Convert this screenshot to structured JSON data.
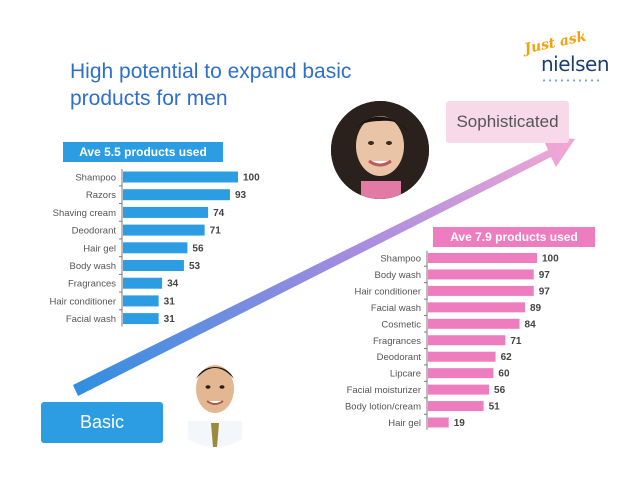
{
  "slide": {
    "title": "High potential to expand basic products for men",
    "logo_tagline": "Just ask",
    "logo_brand": "nielsen",
    "basic_label": "Basic",
    "sophisticated_label": "Sophisticated"
  },
  "colors": {
    "blue": "#2c9de2",
    "pink": "#ee7dc0",
    "title": "#2f6fcc"
  },
  "chart_data": [
    {
      "type": "bar",
      "orientation": "horizontal",
      "title": "Ave 5.5 products used",
      "categories": [
        "Shampoo",
        "Razors",
        "Shaving cream",
        "Deodorant",
        "Hair gel",
        "Body wash",
        "Fragrances",
        "Hair conditioner",
        "Facial wash"
      ],
      "values": [
        100,
        93,
        74,
        71,
        56,
        53,
        34,
        31,
        31
      ],
      "xlim": [
        0,
        100
      ],
      "grid": false,
      "color": "#2c9de2"
    },
    {
      "type": "bar",
      "orientation": "horizontal",
      "title": "Ave 7.9 products used",
      "categories": [
        "Shampoo",
        "Body wash",
        "Hair conditioner",
        "Facial wash",
        "Cosmetic",
        "Fragrances",
        "Deodorant",
        "Lipcare",
        "Facial moisturizer",
        "Body lotion/cream",
        "Hair gel"
      ],
      "values": [
        100,
        97,
        97,
        89,
        84,
        71,
        62,
        60,
        56,
        51,
        19
      ],
      "xlim": [
        0,
        100
      ],
      "grid": false,
      "color": "#ee7dc0"
    }
  ]
}
